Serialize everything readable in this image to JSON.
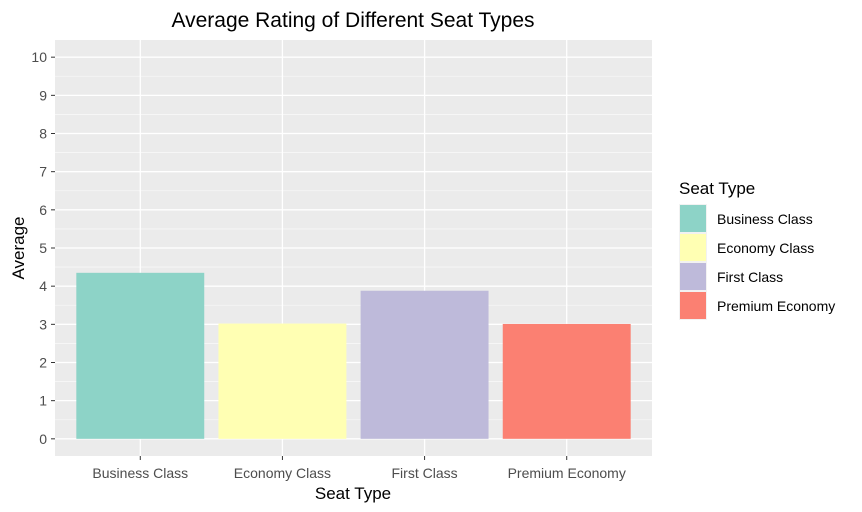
{
  "chart_data": {
    "type": "bar",
    "title": "Average Rating of Different Seat Types",
    "xlabel": "Seat Type",
    "ylabel": "Average",
    "categories": [
      "Business Class",
      "Economy Class",
      "First Class",
      "Premium Economy"
    ],
    "values": [
      4.35,
      3.02,
      3.88,
      3.01
    ],
    "colors": [
      "#8DD3C7",
      "#FFFFB3",
      "#BEBADA",
      "#FB8072"
    ],
    "ylim": [
      -0.45,
      10.45
    ],
    "yticks": [
      "0",
      "1",
      "2",
      "3",
      "4",
      "5",
      "6",
      "7",
      "8",
      "9",
      "10"
    ],
    "grid": true,
    "legend": {
      "title": "Seat Type",
      "position": "right",
      "items": [
        "Business Class",
        "Economy Class",
        "First Class",
        "Premium Economy"
      ]
    }
  }
}
